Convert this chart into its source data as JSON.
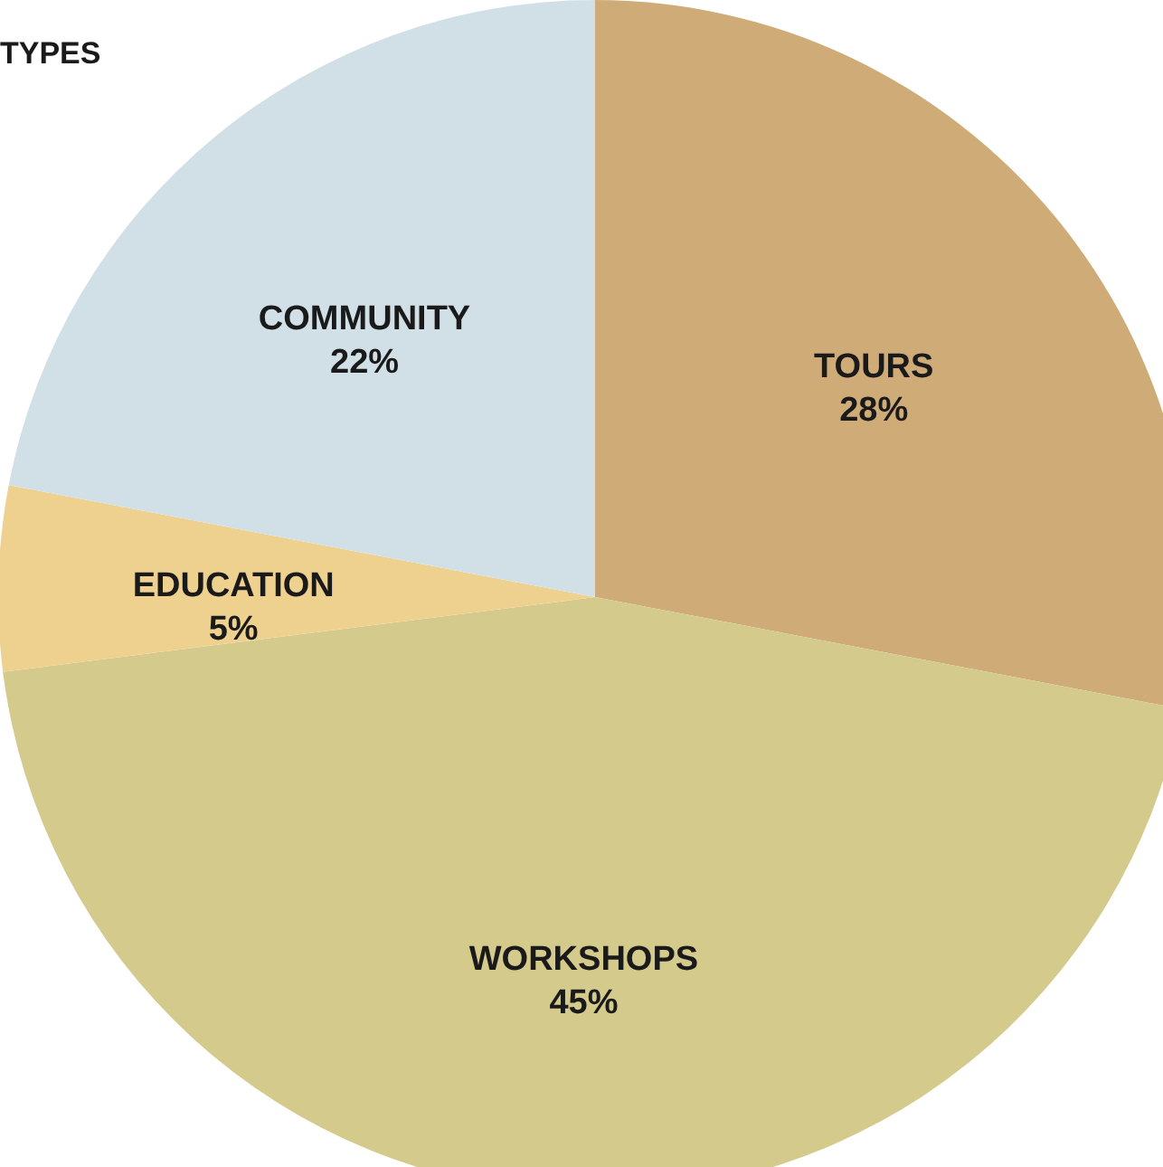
{
  "chart_data": {
    "type": "pie",
    "title": "TYPES",
    "categories": [
      "TOURS",
      "WORKSHOPS",
      "EDUCATION",
      "COMMUNITY"
    ],
    "values": [
      28,
      45,
      5,
      22
    ],
    "value_labels": [
      "28%",
      "45%",
      "5%",
      "22%"
    ],
    "colors": [
      "#cfab78",
      "#d4ca8b",
      "#efd18f",
      "#d1e0e6"
    ]
  }
}
